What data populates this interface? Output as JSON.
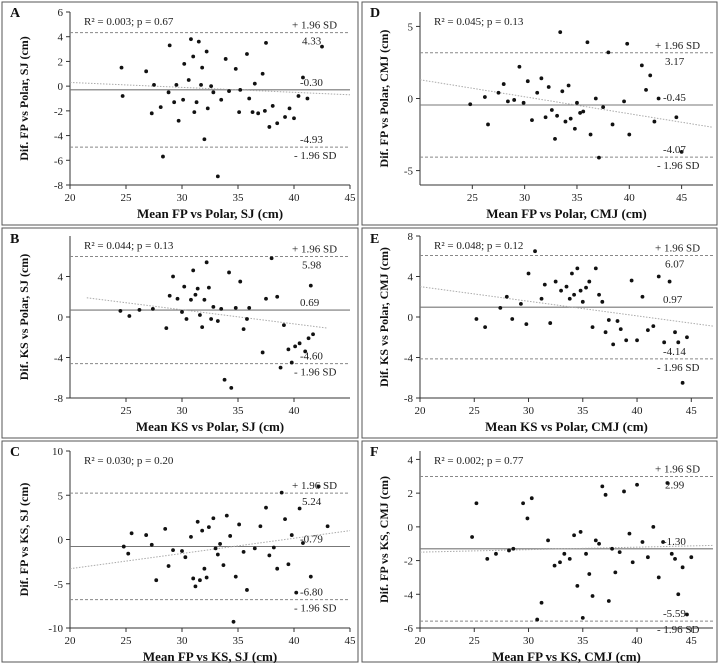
{
  "figure": {
    "title": ""
  },
  "chart_data": [
    {
      "type": "scatter",
      "panel": "A",
      "xlabel": "Mean FP vs Polar, SJ (cm)",
      "ylabel": "Dif. FP vs Polar, SJ (cm)",
      "xlim": [
        20,
        45
      ],
      "ylim": [
        -8,
        6
      ],
      "xticks": [
        20,
        25,
        30,
        35,
        40,
        45
      ],
      "yticks": [
        -8,
        -6,
        -4,
        -2,
        0,
        2,
        4,
        6
      ],
      "stats": "R² = 0.003; p = 0.67",
      "mean": -0.3,
      "mean_label": "-0.30",
      "upper": 4.33,
      "upper_label": "4.33",
      "upper_tag": "+ 1.96 SD",
      "lower": -4.93,
      "lower_label": "-4.93",
      "lower_tag": "- 1.96 SD",
      "trend": [
        [
          20,
          0.3
        ],
        [
          45,
          -0.7
        ]
      ],
      "points": [
        [
          24.6,
          1.5
        ],
        [
          24.7,
          -0.8
        ],
        [
          26.8,
          1.2
        ],
        [
          27.3,
          -2.2
        ],
        [
          27.5,
          0.1
        ],
        [
          28.1,
          -1.7
        ],
        [
          28.3,
          -5.7
        ],
        [
          28.8,
          -0.5
        ],
        [
          28.9,
          3.3
        ],
        [
          29.3,
          -1.3
        ],
        [
          29.5,
          0.1
        ],
        [
          29.7,
          -2.8
        ],
        [
          30.1,
          -1.1
        ],
        [
          30.2,
          1.8
        ],
        [
          30.6,
          0.5
        ],
        [
          30.8,
          3.8
        ],
        [
          31.0,
          2.4
        ],
        [
          31.1,
          -2.1
        ],
        [
          31.3,
          -1.3
        ],
        [
          31.5,
          3.6
        ],
        [
          31.7,
          0.1
        ],
        [
          31.8,
          1.5
        ],
        [
          32.0,
          -4.3
        ],
        [
          32.2,
          2.8
        ],
        [
          32.3,
          -1.8
        ],
        [
          32.6,
          0.0
        ],
        [
          32.8,
          -0.5
        ],
        [
          33.2,
          -7.3
        ],
        [
          33.5,
          -1.1
        ],
        [
          33.9,
          2.2
        ],
        [
          34.2,
          -0.4
        ],
        [
          34.8,
          1.4
        ],
        [
          35.1,
          -2.1
        ],
        [
          35.2,
          -0.3
        ],
        [
          35.8,
          2.6
        ],
        [
          36.0,
          -1.0
        ],
        [
          36.3,
          -2.1
        ],
        [
          36.5,
          0.2
        ],
        [
          36.8,
          -2.2
        ],
        [
          37.2,
          1.0
        ],
        [
          37.4,
          -2.0
        ],
        [
          37.5,
          3.5
        ],
        [
          37.8,
          -3.3
        ],
        [
          38.1,
          -1.6
        ],
        [
          38.5,
          -3.0
        ],
        [
          39.2,
          -2.5
        ],
        [
          39.6,
          -1.8
        ],
        [
          40.0,
          -2.6
        ],
        [
          40.4,
          -0.8
        ],
        [
          40.8,
          0.7
        ],
        [
          41.2,
          -1.0
        ],
        [
          42.5,
          3.2
        ]
      ]
    },
    {
      "type": "scatter",
      "panel": "B",
      "xlabel": "Mean KS vs Polar, SJ (cm)",
      "ylabel": "Dif. KS vs Polar, SJ (cm)",
      "xlim": [
        20,
        45
      ],
      "ylim": [
        -8,
        8
      ],
      "xticks": [
        25,
        30,
        35,
        40
      ],
      "yticks": [
        -8,
        -4,
        0,
        4
      ],
      "stats": "R² = 0.044; p = 0.13",
      "mean": 0.69,
      "mean_label": "0.69",
      "upper": 5.98,
      "upper_label": "5.98",
      "upper_tag": "+ 1.96 SD",
      "lower": -4.6,
      "lower_label": "-4.60",
      "lower_tag": "- 1.96 SD",
      "trend": [
        [
          21.5,
          1.9
        ],
        [
          43,
          -1.1
        ]
      ],
      "points": [
        [
          24.5,
          0.6
        ],
        [
          25.3,
          0.1
        ],
        [
          26.2,
          0.7
        ],
        [
          27.4,
          0.8
        ],
        [
          28.6,
          -1.1
        ],
        [
          28.9,
          2.1
        ],
        [
          29.2,
          4.0
        ],
        [
          29.6,
          1.8
        ],
        [
          30.0,
          0.5
        ],
        [
          30.2,
          3.0
        ],
        [
          30.4,
          -0.2
        ],
        [
          30.8,
          1.7
        ],
        [
          31.0,
          4.6
        ],
        [
          31.2,
          2.2
        ],
        [
          31.4,
          2.8
        ],
        [
          31.6,
          0.2
        ],
        [
          31.8,
          -1.0
        ],
        [
          32.0,
          1.7
        ],
        [
          32.2,
          5.4
        ],
        [
          32.4,
          2.9
        ],
        [
          32.6,
          -0.2
        ],
        [
          32.8,
          1.0
        ],
        [
          33.2,
          -0.4
        ],
        [
          33.5,
          0.8
        ],
        [
          33.8,
          -6.2
        ],
        [
          34.2,
          4.4
        ],
        [
          34.4,
          -7.0
        ],
        [
          34.8,
          0.9
        ],
        [
          35.2,
          3.5
        ],
        [
          35.5,
          -1.2
        ],
        [
          35.8,
          -0.2
        ],
        [
          36.0,
          0.9
        ],
        [
          37.2,
          -3.5
        ],
        [
          37.5,
          1.8
        ],
        [
          38.0,
          5.8
        ],
        [
          38.5,
          2.0
        ],
        [
          38.8,
          -5.0
        ],
        [
          39.1,
          -0.8
        ],
        [
          39.5,
          -3.2
        ],
        [
          39.8,
          -4.5
        ],
        [
          40.1,
          -2.9
        ],
        [
          40.5,
          -2.6
        ],
        [
          41.0,
          -3.4
        ],
        [
          41.3,
          -2.1
        ],
        [
          41.5,
          3.1
        ],
        [
          41.7,
          -1.7
        ]
      ]
    },
    {
      "type": "scatter",
      "panel": "C",
      "xlabel": "Mean FP vs KS, SJ (cm)",
      "ylabel": "Dif. FP vs KS, SJ (cm)",
      "xlim": [
        20,
        45
      ],
      "ylim": [
        -10,
        10
      ],
      "xticks": [
        20,
        25,
        30,
        35,
        40,
        45
      ],
      "yticks": [
        -10,
        -5,
        0,
        5,
        10
      ],
      "stats": "R² = 0.030; p = 0.20",
      "mean": -0.79,
      "mean_label": "-0.79",
      "upper": 5.24,
      "upper_label": "5.24",
      "upper_tag": "+ 1.96 SD",
      "lower": -6.8,
      "lower_label": "-6.80",
      "lower_tag": "- 1.96 SD",
      "trend": [
        [
          20,
          -3.3
        ],
        [
          45,
          1.0
        ]
      ],
      "points": [
        [
          24.8,
          -0.8
        ],
        [
          25.2,
          -1.6
        ],
        [
          25.5,
          0.7
        ],
        [
          26.8,
          0.5
        ],
        [
          27.3,
          -0.6
        ],
        [
          27.7,
          -4.6
        ],
        [
          28.5,
          1.2
        ],
        [
          28.8,
          -3.0
        ],
        [
          29.2,
          -1.2
        ],
        [
          30.0,
          -1.3
        ],
        [
          30.3,
          -2.0
        ],
        [
          30.8,
          0.3
        ],
        [
          31.0,
          -4.4
        ],
        [
          31.2,
          -5.3
        ],
        [
          31.4,
          2.0
        ],
        [
          31.6,
          -4.6
        ],
        [
          31.8,
          1.0
        ],
        [
          32.0,
          -3.3
        ],
        [
          32.2,
          -4.3
        ],
        [
          32.4,
          1.4
        ],
        [
          32.8,
          2.4
        ],
        [
          33.0,
          -1.0
        ],
        [
          33.2,
          -1.7
        ],
        [
          33.4,
          -0.5
        ],
        [
          33.7,
          -2.9
        ],
        [
          34.0,
          2.7
        ],
        [
          34.3,
          0.4
        ],
        [
          34.6,
          -9.3
        ],
        [
          34.8,
          -4.2
        ],
        [
          35.1,
          1.7
        ],
        [
          35.5,
          -1.4
        ],
        [
          35.8,
          -5.7
        ],
        [
          36.5,
          -1.0
        ],
        [
          37.0,
          1.5
        ],
        [
          37.5,
          3.6
        ],
        [
          37.8,
          -1.8
        ],
        [
          38.2,
          -0.9
        ],
        [
          38.5,
          -3.3
        ],
        [
          38.9,
          5.3
        ],
        [
          39.2,
          2.3
        ],
        [
          39.5,
          -2.8
        ],
        [
          39.8,
          0.5
        ],
        [
          40.2,
          -6.0
        ],
        [
          40.5,
          3.5
        ],
        [
          40.8,
          -0.4
        ],
        [
          41.5,
          -4.2
        ],
        [
          42.2,
          6.0
        ],
        [
          43.0,
          1.5
        ]
      ]
    },
    {
      "type": "scatter",
      "panel": "D",
      "xlabel": "Mean FP vs Polar, CMJ (cm)",
      "ylabel": "Dif. FP vs Polar, CMJ (cm)",
      "xlim": [
        20,
        48
      ],
      "ylim": [
        -6,
        6
      ],
      "xticks": [
        25,
        30,
        35,
        40,
        45
      ],
      "yticks": [
        -5,
        0,
        5
      ],
      "stats": "R² = 0.045; p = 0.13",
      "mean": -0.45,
      "mean_label": "-0.45",
      "upper": 3.17,
      "upper_label": "3.17",
      "upper_tag": "+ 1.96 SD",
      "lower": -4.07,
      "lower_label": "-4.07",
      "lower_tag": "- 1.96 SD",
      "trend": [
        [
          20,
          1.3
        ],
        [
          48,
          -2.0
        ]
      ],
      "points": [
        [
          24.8,
          -0.4
        ],
        [
          26.2,
          0.1
        ],
        [
          26.5,
          -1.8
        ],
        [
          27.5,
          0.4
        ],
        [
          28.0,
          1.0
        ],
        [
          28.4,
          -0.2
        ],
        [
          29.0,
          -0.1
        ],
        [
          29.5,
          2.2
        ],
        [
          29.9,
          -0.3
        ],
        [
          30.3,
          1.2
        ],
        [
          30.7,
          -1.5
        ],
        [
          31.2,
          0.4
        ],
        [
          31.6,
          1.4
        ],
        [
          32.0,
          -1.3
        ],
        [
          32.3,
          0.8
        ],
        [
          32.6,
          -0.8
        ],
        [
          32.9,
          -2.8
        ],
        [
          33.1,
          -1.2
        ],
        [
          33.4,
          4.6
        ],
        [
          33.6,
          0.5
        ],
        [
          33.9,
          -1.6
        ],
        [
          34.2,
          0.9
        ],
        [
          34.4,
          -1.4
        ],
        [
          34.8,
          -2.1
        ],
        [
          35.0,
          -0.3
        ],
        [
          35.3,
          -1.0
        ],
        [
          35.6,
          -0.9
        ],
        [
          36.0,
          3.9
        ],
        [
          36.3,
          -2.5
        ],
        [
          36.8,
          0.0
        ],
        [
          37.1,
          -4.1
        ],
        [
          37.5,
          -0.6
        ],
        [
          38.0,
          3.2
        ],
        [
          38.4,
          -1.8
        ],
        [
          39.5,
          -0.2
        ],
        [
          39.8,
          3.8
        ],
        [
          40.0,
          -2.5
        ],
        [
          41.2,
          2.3
        ],
        [
          41.6,
          0.6
        ],
        [
          42.0,
          1.6
        ],
        [
          42.4,
          -1.6
        ],
        [
          42.8,
          0.0
        ],
        [
          44.5,
          -1.3
        ],
        [
          45.0,
          -3.7
        ]
      ]
    },
    {
      "type": "scatter",
      "panel": "E",
      "xlabel": "Mean KS vs Polar, CMJ (cm)",
      "ylabel": "Dif. KS vs Polar, CMJ (cm)",
      "xlim": [
        20,
        47
      ],
      "ylim": [
        -8,
        8
      ],
      "xticks": [
        20,
        25,
        30,
        35,
        40,
        45
      ],
      "yticks": [
        -8,
        -4,
        0,
        4,
        8
      ],
      "stats": "R² = 0.048; p = 0.12",
      "mean": 0.97,
      "mean_label": "0.97",
      "upper": 6.07,
      "upper_label": "6.07",
      "upper_tag": "+ 1.96 SD",
      "lower": -4.14,
      "lower_label": "-4.14",
      "lower_tag": "- 1.96 SD",
      "trend": [
        [
          20,
          3.0
        ],
        [
          47,
          -0.9
        ]
      ],
      "points": [
        [
          25.2,
          -0.2
        ],
        [
          26.0,
          -1.0
        ],
        [
          27.4,
          0.9
        ],
        [
          28.0,
          2.0
        ],
        [
          28.5,
          -0.2
        ],
        [
          29.3,
          1.3
        ],
        [
          29.8,
          -0.7
        ],
        [
          30.6,
          6.5
        ],
        [
          30.0,
          4.3
        ],
        [
          31.2,
          1.8
        ],
        [
          31.5,
          3.2
        ],
        [
          32.0,
          -0.6
        ],
        [
          32.5,
          3.5
        ],
        [
          33.0,
          2.6
        ],
        [
          33.5,
          3.0
        ],
        [
          33.8,
          1.8
        ],
        [
          34.0,
          4.3
        ],
        [
          34.2,
          2.2
        ],
        [
          34.5,
          4.8
        ],
        [
          34.8,
          2.6
        ],
        [
          35.0,
          1.5
        ],
        [
          35.3,
          2.9
        ],
        [
          35.6,
          3.5
        ],
        [
          35.9,
          -1.0
        ],
        [
          36.2,
          4.8
        ],
        [
          36.5,
          2.2
        ],
        [
          36.8,
          1.5
        ],
        [
          37.1,
          -1.5
        ],
        [
          37.4,
          -0.3
        ],
        [
          37.8,
          -2.7
        ],
        [
          38.2,
          -0.4
        ],
        [
          38.5,
          -1.2
        ],
        [
          39.0,
          -2.3
        ],
        [
          39.5,
          3.6
        ],
        [
          40.0,
          -2.3
        ],
        [
          40.5,
          2.0
        ],
        [
          41.0,
          -1.3
        ],
        [
          41.5,
          -0.9
        ],
        [
          42.0,
          4.0
        ],
        [
          42.5,
          -2.5
        ],
        [
          43.0,
          3.5
        ],
        [
          43.5,
          -1.5
        ],
        [
          43.8,
          -2.5
        ],
        [
          44.2,
          -6.5
        ],
        [
          44.6,
          -2.0
        ]
      ]
    },
    {
      "type": "scatter",
      "panel": "F",
      "xlabel": "Mean FP vs KS, CMJ (cm)",
      "ylabel": "Dif. FP vs KS, CMJ (cm)",
      "xlim": [
        20,
        47
      ],
      "ylim": [
        -6,
        4.5
      ],
      "xticks": [
        20,
        25,
        30,
        35,
        40,
        45
      ],
      "yticks": [
        -6,
        -4,
        -2,
        0,
        2,
        4
      ],
      "stats": "R² = 0.002; p = 0.77",
      "mean": -1.3,
      "mean_label": "-1.30",
      "upper": 2.99,
      "upper_label": "2.99",
      "upper_tag": "+ 1.96 SD",
      "lower": -5.59,
      "lower_label": "-5.59",
      "lower_tag": "- 1.96 SD",
      "trend": [
        [
          20,
          -1.5
        ],
        [
          47,
          -1.1
        ]
      ],
      "points": [
        [
          24.8,
          -0.6
        ],
        [
          25.2,
          1.4
        ],
        [
          26.2,
          -1.9
        ],
        [
          27.0,
          -1.6
        ],
        [
          28.2,
          -1.4
        ],
        [
          28.6,
          -1.3
        ],
        [
          29.5,
          1.4
        ],
        [
          29.9,
          0.5
        ],
        [
          30.3,
          1.7
        ],
        [
          30.8,
          -5.5
        ],
        [
          31.2,
          -4.5
        ],
        [
          31.8,
          -0.8
        ],
        [
          32.4,
          -2.3
        ],
        [
          32.9,
          -2.1
        ],
        [
          33.3,
          -1.6
        ],
        [
          33.8,
          -1.9
        ],
        [
          34.2,
          -0.5
        ],
        [
          34.5,
          -3.5
        ],
        [
          34.8,
          -0.3
        ],
        [
          35.0,
          -5.4
        ],
        [
          35.3,
          -1.6
        ],
        [
          35.6,
          -2.8
        ],
        [
          35.9,
          -4.1
        ],
        [
          36.2,
          -0.8
        ],
        [
          36.5,
          -1.0
        ],
        [
          36.8,
          2.4
        ],
        [
          37.1,
          1.9
        ],
        [
          37.4,
          -4.4
        ],
        [
          37.7,
          -1.3
        ],
        [
          38.0,
          -2.7
        ],
        [
          38.4,
          -1.5
        ],
        [
          38.8,
          2.1
        ],
        [
          39.3,
          -0.4
        ],
        [
          39.6,
          -2.1
        ],
        [
          40.0,
          2.5
        ],
        [
          40.5,
          -0.9
        ],
        [
          41.0,
          -1.8
        ],
        [
          41.5,
          0.0
        ],
        [
          42.0,
          -3.0
        ],
        [
          42.4,
          -0.9
        ],
        [
          42.8,
          2.6
        ],
        [
          43.2,
          -1.6
        ],
        [
          43.5,
          -1.9
        ],
        [
          43.8,
          -4.0
        ],
        [
          44.2,
          -2.4
        ],
        [
          44.6,
          -5.2
        ],
        [
          45.0,
          -1.8
        ]
      ]
    }
  ]
}
